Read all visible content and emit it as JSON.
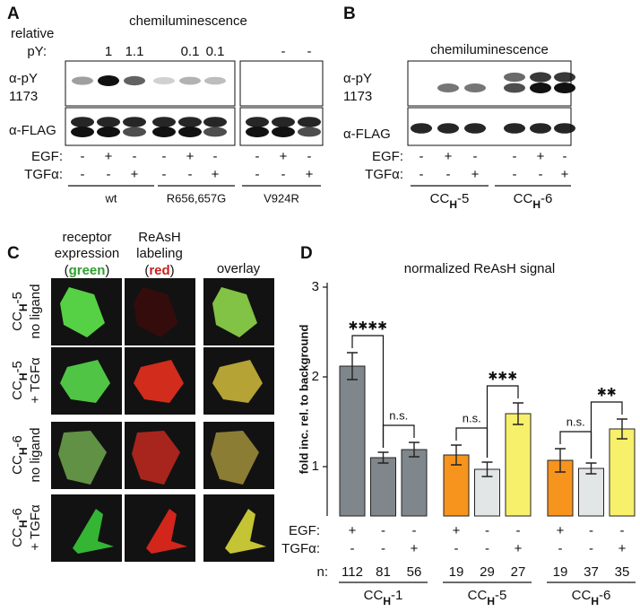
{
  "panel_a": {
    "letter": "A",
    "relative": "relative",
    "heading": "chemiluminescence",
    "py_label": "pY:",
    "py_values": [
      null,
      1,
      1.1,
      null,
      0.1,
      0.1,
      null,
      "-",
      "-"
    ],
    "py_antibody": [
      "α-pY",
      "1173"
    ],
    "flag_antibody": "α-FLAG",
    "egf_label": "EGF:",
    "tgf_label": "TGFα:",
    "egf": [
      "-",
      "+",
      "-",
      "-",
      "+",
      "-",
      "-",
      "+",
      "-"
    ],
    "tgf": [
      "-",
      "-",
      "+",
      "-",
      "-",
      "+",
      "-",
      "-",
      "+"
    ],
    "groups": [
      "wt",
      "R656,657G",
      "V924R"
    ]
  },
  "panel_b": {
    "letter": "B",
    "heading": "chemiluminescence",
    "py_antibody": [
      "α-pY",
      "1173"
    ],
    "flag_antibody": "α-FLAG",
    "egf_label": "EGF:",
    "tgf_label": "TGFα:",
    "egf": [
      "-",
      "+",
      "-",
      "-",
      "+",
      "-"
    ],
    "tgf": [
      "-",
      "-",
      "+",
      "-",
      "-",
      "+"
    ],
    "groups": [
      [
        "CC",
        "H",
        "-5"
      ],
      [
        "CC",
        "H",
        "-6"
      ]
    ]
  },
  "panel_c": {
    "letter": "C",
    "col1": [
      "receptor",
      "expression"
    ],
    "col1_color": [
      "(",
      "green",
      ")"
    ],
    "col2": [
      "ReAsH",
      "labeling"
    ],
    "col2_color": [
      "(",
      "red",
      ")"
    ],
    "col3": "overlay",
    "rows": [
      {
        "name": [
          "CC",
          "H",
          "-5"
        ],
        "condition": "no ligand"
      },
      {
        "name": [
          "CC",
          "H",
          "-5"
        ],
        "condition": "+ TGFα"
      },
      {
        "name": [
          "CC",
          "H",
          "-6"
        ],
        "condition": "no ligand"
      },
      {
        "name": [
          "CC",
          "H",
          "-6"
        ],
        "condition": "+ TGFα"
      }
    ]
  },
  "panel_d": {
    "letter": "D"
  },
  "chart_data": {
    "type": "bar",
    "title": "normalized ReAsH signal",
    "y_label": "fold inc. rel. to background",
    "ylim": [
      0.45,
      3.05
    ],
    "yticks": [
      1,
      2,
      3
    ],
    "values": [
      2.12,
      1.1,
      1.19,
      1.13,
      0.97,
      1.59,
      1.07,
      0.98,
      1.42
    ],
    "errors": [
      0.15,
      0.06,
      0.08,
      0.11,
      0.08,
      0.12,
      0.13,
      0.06,
      0.11
    ],
    "colors": [
      "#7f878c",
      "#7f878c",
      "#7f878c",
      "#f7941d",
      "#e2e6e6",
      "#f7f06a",
      "#f7941d",
      "#e2e6e6",
      "#f7f06a"
    ],
    "egf_label": "EGF:",
    "tgf_label": "TGFα:",
    "egf": [
      "+",
      "-",
      "-",
      "+",
      "-",
      "-",
      "+",
      "-",
      "-"
    ],
    "tgf": [
      "-",
      "-",
      "+",
      "-",
      "-",
      "+",
      "-",
      "-",
      "+"
    ],
    "n_label": "n:",
    "n": [
      112,
      81,
      56,
      19,
      29,
      27,
      19,
      37,
      35
    ],
    "groups": [
      [
        "CC",
        "H",
        "-1"
      ],
      [
        "CC",
        "H",
        "-5"
      ],
      [
        "CC",
        "H",
        "-6"
      ]
    ],
    "significance": [
      "✱✱✱✱",
      "n.s.",
      "n.s.",
      "✱✱✱",
      "n.s.",
      "✱✱"
    ]
  }
}
